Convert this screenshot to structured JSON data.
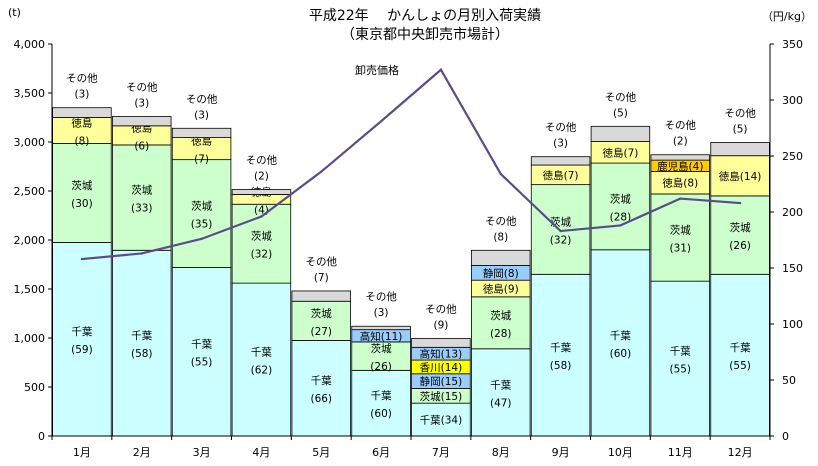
{
  "chart_data": {
    "type": "bar",
    "stacked": true,
    "title": "平成22年　 かんしょの月別入荷実績",
    "subtitle": "（東京都中央卸売市場計）",
    "ylabel_left": "(t)",
    "ylabel_right": "（円/kg）",
    "ylim_left": [
      0,
      4000
    ],
    "ylim_right": [
      0,
      350
    ],
    "yticks_left": [
      "0",
      "500",
      "1,000",
      "1,500",
      "2,000",
      "2,500",
      "3,000",
      "3,500",
      "4,000"
    ],
    "yticks_right": [
      "0",
      "50",
      "100",
      "150",
      "200",
      "250",
      "300",
      "350"
    ],
    "categories": [
      "1月",
      "2月",
      "3月",
      "4月",
      "5月",
      "6月",
      "7月",
      "8月",
      "9月",
      "10月",
      "11月",
      "12月"
    ],
    "colors": {
      "千葉": "#ccffff",
      "茨城": "#ccffcc",
      "徳島": "#ffff99",
      "鹿児島": "#ffcc00",
      "静岡": "#99ccff",
      "香川": "#ffff00",
      "高知": "#99ccff",
      "その他": "#d9d9d9",
      "line": "#5b4b8a"
    },
    "stacks": [
      [
        {
          "name": "千葉",
          "value": 1975,
          "pct": "(59)"
        },
        {
          "name": "茨城",
          "value": 1010,
          "pct": "(30)"
        },
        {
          "name": "徳島",
          "value": 265,
          "pct": "(8)"
        },
        {
          "name": "その他",
          "value": 100,
          "pct": "(3)",
          "top": "その他"
        }
      ],
      [
        {
          "name": "千葉",
          "value": 1895,
          "pct": "(58)"
        },
        {
          "name": "茨城",
          "value": 1075,
          "pct": "(33)"
        },
        {
          "name": "徳島",
          "value": 195,
          "pct": "(6)"
        },
        {
          "name": "その他",
          "value": 95,
          "pct": "(3)",
          "top": "その他"
        }
      ],
      [
        {
          "name": "千葉",
          "value": 1720,
          "pct": "(55)"
        },
        {
          "name": "茨城",
          "value": 1100,
          "pct": "(35)"
        },
        {
          "name": "徳島",
          "value": 225,
          "pct": "(7)"
        },
        {
          "name": "その他",
          "value": 95,
          "pct": "(3)",
          "top": "その他"
        }
      ],
      [
        {
          "name": "千葉",
          "value": 1560,
          "pct": "(62)"
        },
        {
          "name": "茨城",
          "value": 805,
          "pct": "(32)"
        },
        {
          "name": "徳島",
          "value": 100,
          "pct": "(4)"
        },
        {
          "name": "その他",
          "value": 50,
          "pct": "(2)",
          "top": "その他"
        }
      ],
      [
        {
          "name": "千葉",
          "value": 975,
          "pct": "(66)"
        },
        {
          "name": "茨城",
          "value": 400,
          "pct": "(27)"
        },
        {
          "name": "その他",
          "value": 105,
          "pct": "(7)",
          "top": "その他"
        }
      ],
      [
        {
          "name": "千葉",
          "value": 670,
          "pct": "(60)"
        },
        {
          "name": "茨城",
          "value": 290,
          "pct": "(26)"
        },
        {
          "name": "高知",
          "value": 125,
          "pct": "(11)",
          "inline": true
        },
        {
          "name": "その他",
          "value": 35,
          "pct": "(3)",
          "top": "その他"
        }
      ],
      [
        {
          "name": "千葉",
          "value": 335,
          "pct": "(34)",
          "inline": true
        },
        {
          "name": "茨城",
          "value": 150,
          "pct": "(15)",
          "inline": true
        },
        {
          "name": "静岡",
          "value": 150,
          "pct": "(15)",
          "inline": true
        },
        {
          "name": "香川",
          "value": 140,
          "pct": "(14)",
          "inline": true
        },
        {
          "name": "高知",
          "value": 130,
          "pct": "(13)",
          "inline": true
        },
        {
          "name": "その他",
          "value": 90,
          "pct": "(9)",
          "top": "その他"
        }
      ],
      [
        {
          "name": "千葉",
          "value": 890,
          "pct": "(47)"
        },
        {
          "name": "茨城",
          "value": 530,
          "pct": "(28)"
        },
        {
          "name": "徳島",
          "value": 170,
          "pct": "(9)",
          "inline": true
        },
        {
          "name": "静岡",
          "value": 150,
          "pct": "(8)",
          "inline": true
        },
        {
          "name": "その他",
          "value": 155,
          "pct": "(8)",
          "top": "その他"
        }
      ],
      [
        {
          "name": "千葉",
          "value": 1650,
          "pct": "(58)"
        },
        {
          "name": "茨城",
          "value": 915,
          "pct": "(32)"
        },
        {
          "name": "徳島",
          "value": 200,
          "pct": "(7)",
          "inline": true
        },
        {
          "name": "その他",
          "value": 85,
          "pct": "(3)",
          "top": "その他"
        }
      ],
      [
        {
          "name": "千葉",
          "value": 1900,
          "pct": "(60)"
        },
        {
          "name": "茨城",
          "value": 885,
          "pct": "(28)"
        },
        {
          "name": "徳島",
          "value": 220,
          "pct": "(7)",
          "inline": true
        },
        {
          "name": "その他",
          "value": 155,
          "pct": "(5)",
          "top": "その他"
        }
      ],
      [
        {
          "name": "千葉",
          "value": 1580,
          "pct": "(55)"
        },
        {
          "name": "茨城",
          "value": 890,
          "pct": "(31)"
        },
        {
          "name": "徳島",
          "value": 230,
          "pct": "(8)",
          "inline": true
        },
        {
          "name": "鹿児島",
          "value": 115,
          "pct": "(4)",
          "inline": true
        },
        {
          "name": "その他",
          "value": 55,
          "pct": "(2)",
          "top": "その他"
        }
      ],
      [
        {
          "name": "千葉",
          "value": 1650,
          "pct": "(55)"
        },
        {
          "name": "茨城",
          "value": 800,
          "pct": "(26)"
        },
        {
          "name": "徳島",
          "value": 410,
          "pct": "(14)",
          "inline": true
        },
        {
          "name": "その他",
          "value": 135,
          "pct": "(5)",
          "top": "その他"
        }
      ]
    ],
    "line_series": {
      "name": "卸売価格",
      "values": [
        158,
        163,
        176,
        196,
        236,
        281,
        327,
        234,
        183,
        188,
        212,
        208
      ]
    }
  }
}
